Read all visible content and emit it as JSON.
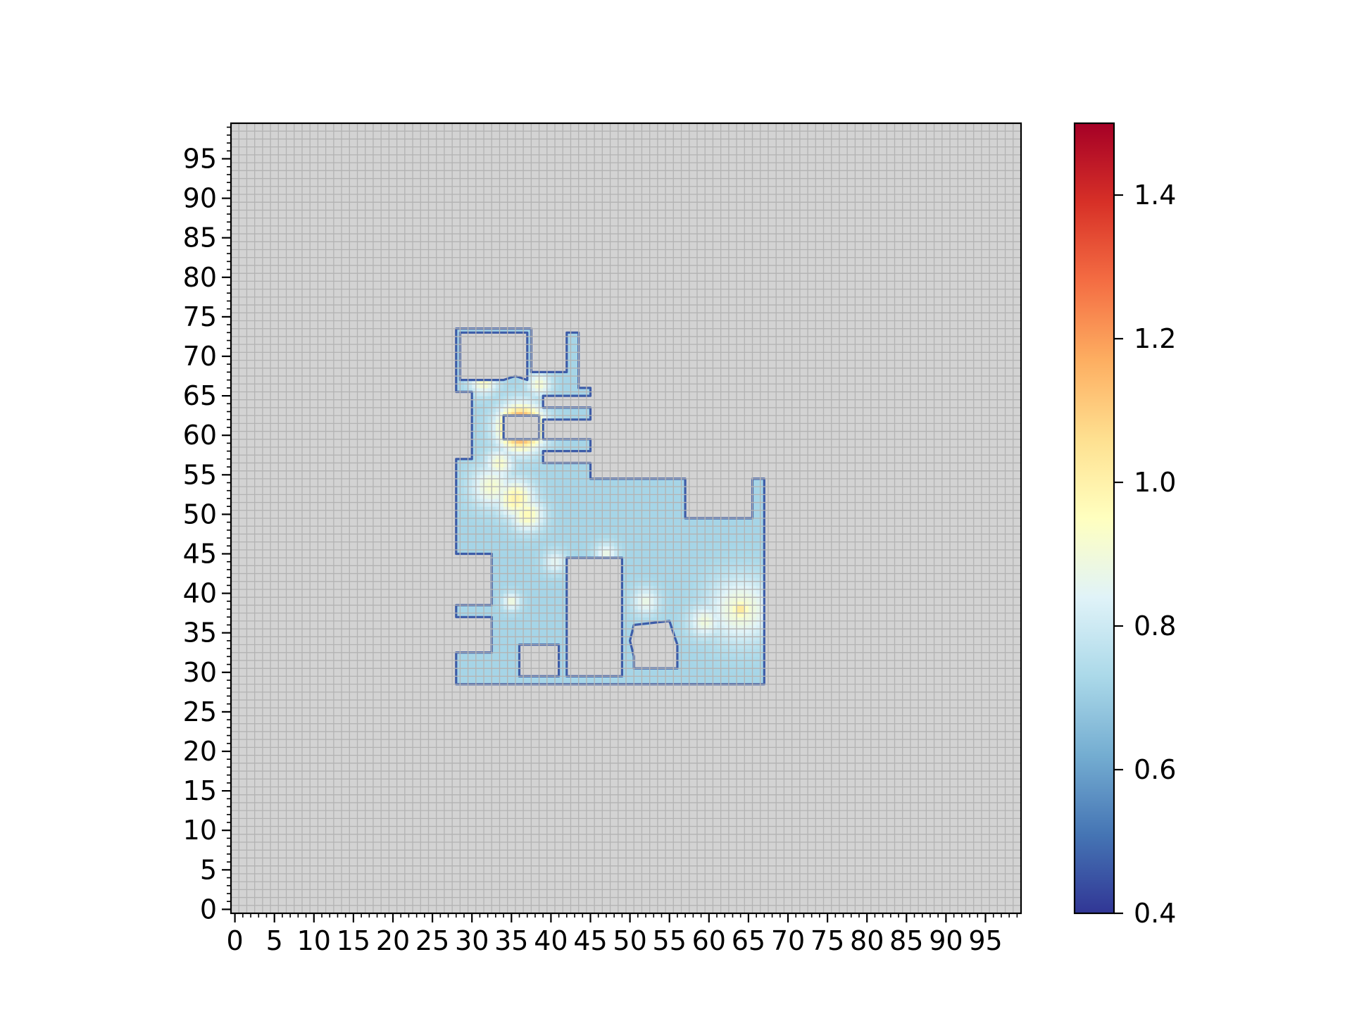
{
  "chart_data": [
    {
      "type": "heatmap",
      "title": "",
      "xlabel": "",
      "ylabel": "",
      "xlim": [
        -0.5,
        99.5
      ],
      "ylim": [
        -0.5,
        99.5
      ],
      "grid": true,
      "x_ticks": [
        0,
        5,
        10,
        15,
        20,
        25,
        30,
        35,
        40,
        45,
        50,
        55,
        60,
        65,
        70,
        75,
        80,
        85,
        90,
        95
      ],
      "y_ticks": [
        0,
        5,
        10,
        15,
        20,
        25,
        30,
        35,
        40,
        45,
        50,
        55,
        60,
        65,
        70,
        75,
        80,
        85,
        90,
        95
      ],
      "background_value_color": "#d3d3d3",
      "colormap": "RdYlBu_r",
      "colorbar": {
        "vmin": 0.4,
        "vmax": 1.5,
        "ticks": [
          0.4,
          0.6,
          0.8,
          1.0,
          1.2,
          1.4
        ]
      },
      "base_value": 0.72,
      "region_outline": [
        [
          28,
          28.5
        ],
        [
          67,
          28.5
        ],
        [
          67,
          54.5
        ],
        [
          65.5,
          54.5
        ],
        [
          65.5,
          49.5
        ],
        [
          57,
          49.5
        ],
        [
          57,
          54.5
        ],
        [
          45,
          54.5
        ],
        [
          45,
          56.5
        ],
        [
          39,
          56.5
        ],
        [
          39,
          58
        ],
        [
          45,
          58
        ],
        [
          45,
          59.5
        ],
        [
          39,
          59.5
        ],
        [
          39,
          62
        ],
        [
          45,
          62
        ],
        [
          45,
          63.5
        ],
        [
          39,
          63.5
        ],
        [
          39,
          65
        ],
        [
          45,
          65
        ],
        [
          45,
          66
        ],
        [
          43.5,
          66
        ],
        [
          43.5,
          73
        ],
        [
          42,
          73
        ],
        [
          42,
          68
        ],
        [
          37.5,
          68
        ],
        [
          37.5,
          73.5
        ],
        [
          28,
          73.5
        ],
        [
          28,
          65.5
        ],
        [
          30,
          65.5
        ],
        [
          30,
          57
        ],
        [
          28,
          57
        ],
        [
          28,
          45
        ],
        [
          32.5,
          45
        ],
        [
          32.5,
          38.5
        ],
        [
          28,
          38.5
        ],
        [
          28,
          37
        ],
        [
          32.5,
          37
        ],
        [
          32.5,
          32.5
        ],
        [
          28,
          32.5
        ]
      ],
      "holes": [
        [
          [
            28.5,
            67
          ],
          [
            34,
            67
          ],
          [
            35.5,
            67.5
          ],
          [
            37,
            67
          ],
          [
            37,
            73
          ],
          [
            28.5,
            73
          ]
        ],
        [
          [
            36,
            29.5
          ],
          [
            41,
            29.5
          ],
          [
            41,
            33.5
          ],
          [
            36,
            33.5
          ]
        ],
        [
          [
            42,
            29.5
          ],
          [
            49,
            29.5
          ],
          [
            49,
            44.5
          ],
          [
            42,
            44.5
          ]
        ],
        [
          [
            50.5,
            30.5
          ],
          [
            56,
            30.5
          ],
          [
            56,
            33.5
          ],
          [
            55.5,
            35
          ],
          [
            55,
            36.5
          ],
          [
            50.5,
            36
          ],
          [
            50,
            34
          ],
          [
            50.5,
            32
          ]
        ],
        [
          [
            34,
            59.5
          ],
          [
            38.5,
            59.5
          ],
          [
            38.5,
            62.5
          ],
          [
            34,
            62.5
          ]
        ]
      ],
      "hotspots": [
        {
          "x": 36.2,
          "y": 61,
          "r": 1.8,
          "v": 1.38
        },
        {
          "x": 33.5,
          "y": 56.5,
          "r": 1.2,
          "v": 0.93
        },
        {
          "x": 32.5,
          "y": 53.5,
          "r": 1.8,
          "v": 0.92
        },
        {
          "x": 35.5,
          "y": 52,
          "r": 1.6,
          "v": 1.0
        },
        {
          "x": 37,
          "y": 50,
          "r": 1.4,
          "v": 0.97
        },
        {
          "x": 31.5,
          "y": 67,
          "r": 1.2,
          "v": 0.95
        },
        {
          "x": 38.5,
          "y": 66.5,
          "r": 1.0,
          "v": 0.92
        },
        {
          "x": 64,
          "y": 38,
          "r": 2.8,
          "v": 0.92
        },
        {
          "x": 64,
          "y": 38,
          "r": 0.9,
          "v": 1.05
        },
        {
          "x": 59.5,
          "y": 36.5,
          "r": 1.4,
          "v": 0.9
        },
        {
          "x": 52,
          "y": 39,
          "r": 1.2,
          "v": 0.88
        },
        {
          "x": 35,
          "y": 39,
          "r": 0.8,
          "v": 0.9
        },
        {
          "x": 47,
          "y": 45,
          "r": 1.0,
          "v": 0.88
        },
        {
          "x": 40.5,
          "y": 44,
          "r": 1.0,
          "v": 0.86
        }
      ],
      "coldspots": [
        {
          "x": 44,
          "y": 49,
          "r": 3.2,
          "v": 0.64
        },
        {
          "x": 49,
          "y": 47,
          "r": 3.4,
          "v": 0.63
        },
        {
          "x": 53,
          "y": 45,
          "r": 3.0,
          "v": 0.64
        },
        {
          "x": 40.5,
          "y": 40,
          "r": 2.4,
          "v": 0.65
        },
        {
          "x": 45,
          "y": 42,
          "r": 2.0,
          "v": 0.66
        },
        {
          "x": 31,
          "y": 62,
          "r": 2.4,
          "v": 0.64
        },
        {
          "x": 40,
          "y": 67,
          "r": 1.6,
          "v": 0.65
        },
        {
          "x": 58.5,
          "y": 42,
          "r": 2.0,
          "v": 0.67
        }
      ]
    }
  ]
}
